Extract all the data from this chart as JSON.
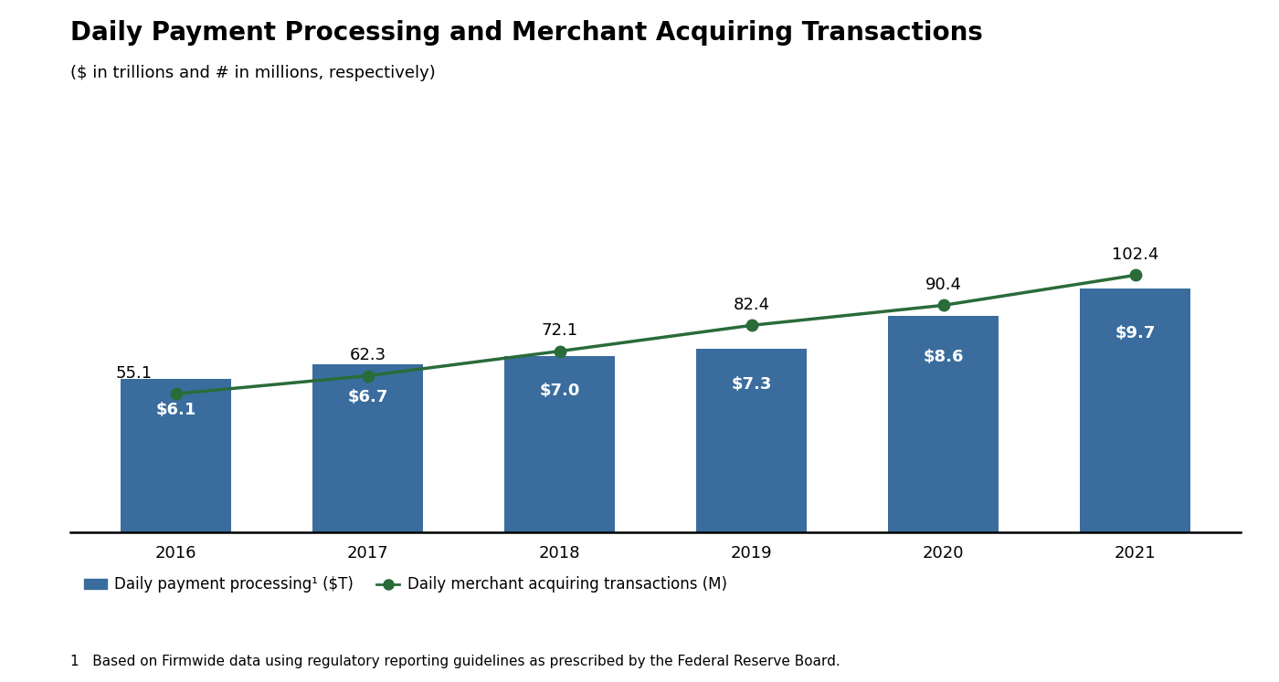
{
  "title": "Daily Payment Processing and Merchant Acquiring Transactions",
  "subtitle": "($ in trillions and # in millions, respectively)",
  "years": [
    2016,
    2017,
    2018,
    2019,
    2020,
    2021
  ],
  "bar_values": [
    6.1,
    6.7,
    7.0,
    7.3,
    8.6,
    9.7
  ],
  "bar_labels": [
    "$6.1",
    "$6.7",
    "$7.0",
    "$7.3",
    "$8.6",
    "$9.7"
  ],
  "line_values": [
    55.1,
    62.3,
    72.1,
    82.4,
    90.4,
    102.4
  ],
  "line_labels": [
    "55.1",
    "62.3",
    "72.1",
    "82.4",
    "90.4",
    "102.4"
  ],
  "bar_color": "#3a6d9e",
  "line_color": "#2a6b3a",
  "background_color": "#ffffff",
  "title_fontsize": 20,
  "subtitle_fontsize": 13,
  "bar_label_fontsize": 13,
  "line_label_fontsize": 13,
  "tick_fontsize": 13,
  "legend_fontsize": 12,
  "footnote_fontsize": 11,
  "legend_bar_label": "Daily payment processing¹ ($T)",
  "legend_line_label": "Daily merchant acquiring transactions (M)",
  "footnote": "1   Based on Firmwide data using regulatory reporting guidelines as prescribed by the Federal Reserve Board.",
  "ylim_left": [
    0,
    17
  ],
  "ylim_right": [
    0,
    170
  ]
}
